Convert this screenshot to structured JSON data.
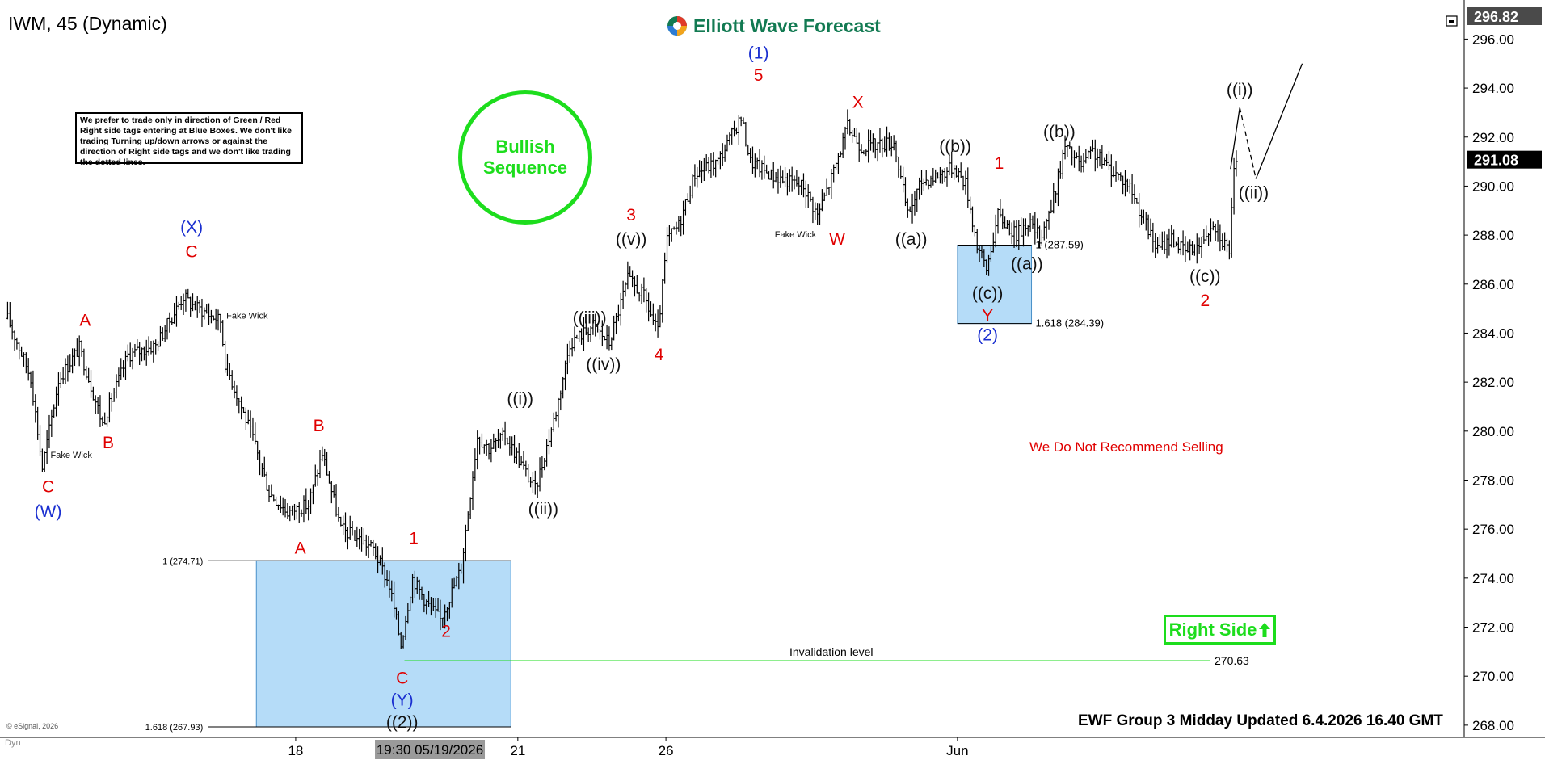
{
  "symbol_label": "IWM, 45 (Dynamic)",
  "logo_text": "Elliott Wave Forecast",
  "legend_text": "We prefer to trade only in direction of Green / Red Right side tags entering at Blue Boxes. We don't like trading Turning up/down arrows or against the direction of Right side tags and we don't like trading the dotted lines.",
  "bullish_text": "Bullish\nSequence",
  "right_side_text": "Right Side",
  "no_sell_text": "We Do Not Recommend Selling",
  "footer_text": "EWF Group 3 Midday Updated 6.4.2026 16.40 GMT",
  "copyright": "© eSignal, 2026",
  "dyn_label": "Dyn",
  "colors": {
    "green": "#1ddd1d",
    "blue_box": "#b5dcf8",
    "red": "#e00000",
    "blue_label": "#1a2fd0",
    "logo": "#127a52"
  },
  "chart_data": {
    "type": "candlestick-bars",
    "ylim": [
      267.6,
      297.2
    ],
    "y_ticks": [
      268,
      270,
      272,
      274,
      276,
      278,
      280,
      282,
      284,
      286,
      288,
      290,
      292,
      294,
      296
    ],
    "x_ticks": [
      {
        "label": "18",
        "bar": 125
      },
      {
        "label": "21",
        "bar": 221
      },
      {
        "label": "26",
        "bar": 285
      },
      {
        "label": "Jun",
        "bar": 411
      }
    ],
    "x_cursor_label": "19:30 05/19/2026",
    "x_cursor_bar": 183,
    "n_bars_span": 630,
    "price_tags": [
      {
        "text": "296.82",
        "value": 296.82,
        "style": "dark"
      },
      {
        "text": "291.08",
        "value": 291.08,
        "style": "black"
      }
    ],
    "anchors": [
      [
        0,
        284.6
      ],
      [
        10,
        282.2
      ],
      [
        15,
        278.5
      ],
      [
        22,
        282.1
      ],
      [
        31,
        283.4
      ],
      [
        41,
        280.3
      ],
      [
        52,
        283.1
      ],
      [
        64,
        283.5
      ],
      [
        76,
        285.5
      ],
      [
        79,
        285.2
      ],
      [
        92,
        284.5
      ],
      [
        94,
        282.8
      ],
      [
        106,
        279.7
      ],
      [
        113,
        277.5
      ],
      [
        121,
        276.7
      ],
      [
        130,
        277.0
      ],
      [
        136,
        279.1
      ],
      [
        144,
        276.0
      ],
      [
        152,
        275.6
      ],
      [
        158,
        275.2
      ],
      [
        165,
        273.7
      ],
      [
        170,
        271.3
      ],
      [
        175,
        274.0
      ],
      [
        181,
        273.0
      ],
      [
        187,
        272.3
      ],
      [
        196,
        274.4
      ],
      [
        203,
        279.8
      ],
      [
        208,
        279.3
      ],
      [
        215,
        279.8
      ],
      [
        220,
        279.0
      ],
      [
        228,
        277.6
      ],
      [
        237,
        280.8
      ],
      [
        243,
        283.6
      ],
      [
        253,
        284.3
      ],
      [
        260,
        283.6
      ],
      [
        268,
        286.2
      ],
      [
        275,
        285.5
      ],
      [
        281,
        284.0
      ],
      [
        285,
        287.8
      ],
      [
        290,
        288.4
      ],
      [
        297,
        290.5
      ],
      [
        307,
        291.0
      ],
      [
        317,
        292.8
      ],
      [
        321,
        291.0
      ],
      [
        331,
        290.4
      ],
      [
        344,
        290.0
      ],
      [
        350,
        288.8
      ],
      [
        357,
        290.6
      ],
      [
        363,
        292.4
      ],
      [
        369,
        291.6
      ],
      [
        383,
        291.8
      ],
      [
        389,
        288.8
      ],
      [
        395,
        290.2
      ],
      [
        401,
        290.4
      ],
      [
        409,
        290.8
      ],
      [
        414,
        290.1
      ],
      [
        419,
        287.6
      ],
      [
        423,
        286.6
      ],
      [
        428,
        288.8
      ],
      [
        436,
        288.0
      ],
      [
        441,
        288.6
      ],
      [
        446,
        287.9
      ],
      [
        451,
        289.1
      ],
      [
        457,
        291.6
      ],
      [
        464,
        290.8
      ],
      [
        469,
        291.4
      ],
      [
        473,
        291.0
      ],
      [
        478,
        290.6
      ],
      [
        485,
        290.0
      ],
      [
        491,
        288.6
      ],
      [
        497,
        287.4
      ],
      [
        503,
        287.9
      ],
      [
        509,
        287.3
      ],
      [
        515,
        287.6
      ],
      [
        521,
        288.6
      ],
      [
        525,
        287.8
      ],
      [
        528,
        287.4
      ],
      [
        530,
        290.5
      ],
      [
        532,
        291.1
      ]
    ],
    "zones": [
      {
        "from_bar": 108,
        "to_bar": 218,
        "top": 274.71,
        "bottom": 267.93,
        "upper_label": "1 (274.71)",
        "lower_label": "1.618 (267.93)"
      },
      {
        "from_bar": 411,
        "to_bar": 443,
        "top": 287.59,
        "bottom": 284.39,
        "upper_label": "1 (287.59)",
        "lower_label": "1.618 (284.39)"
      }
    ],
    "invalidation": {
      "value": 270.63,
      "label": "Invalidation level",
      "value_label": "270.63",
      "from_bar": 172,
      "to_bar": 520
    },
    "projection": {
      "solid": [
        [
          529,
          290.7
        ],
        [
          533,
          293.2
        ]
      ],
      "dashed": [
        [
          533,
          293.2
        ],
        [
          540,
          290.3
        ]
      ],
      "solid2": [
        [
          540,
          290.3
        ],
        [
          560,
          295.0
        ]
      ]
    },
    "wave_labels": [
      {
        "text": "C",
        "bar": 18,
        "price": 277.5,
        "color": "red"
      },
      {
        "text": "(W)",
        "bar": 18,
        "price": 276.5,
        "color": "blue"
      },
      {
        "text": "Fake Wick",
        "bar": 28,
        "price": 278.9,
        "color": "black",
        "size": "small"
      },
      {
        "text": "A",
        "bar": 34,
        "price": 284.3,
        "color": "red"
      },
      {
        "text": "B",
        "bar": 44,
        "price": 279.3,
        "color": "red"
      },
      {
        "text": "(X)",
        "bar": 80,
        "price": 288.1,
        "color": "blue"
      },
      {
        "text": "C",
        "bar": 80,
        "price": 287.1,
        "color": "red"
      },
      {
        "text": "Fake Wick",
        "bar": 104,
        "price": 284.6,
        "color": "black",
        "size": "small"
      },
      {
        "text": "B",
        "bar": 135,
        "price": 280.0,
        "color": "red"
      },
      {
        "text": "A",
        "bar": 127,
        "price": 275.0,
        "color": "red"
      },
      {
        "text": "1",
        "bar": 176,
        "price": 275.4,
        "color": "red"
      },
      {
        "text": "2",
        "bar": 190,
        "price": 271.6,
        "color": "red"
      },
      {
        "text": "C",
        "bar": 171,
        "price": 269.7,
        "color": "red"
      },
      {
        "text": "(Y)",
        "bar": 171,
        "price": 268.8,
        "color": "blue"
      },
      {
        "text": "((2))",
        "bar": 171,
        "price": 267.9,
        "color": "black"
      },
      {
        "text": "((i))",
        "bar": 222,
        "price": 281.1,
        "color": "black"
      },
      {
        "text": "((ii))",
        "bar": 232,
        "price": 276.6,
        "color": "black"
      },
      {
        "text": "((iii))",
        "bar": 252,
        "price": 284.4,
        "color": "black"
      },
      {
        "text": "((iv))",
        "bar": 258,
        "price": 282.5,
        "color": "black"
      },
      {
        "text": "3",
        "bar": 270,
        "price": 288.6,
        "color": "red"
      },
      {
        "text": "((v))",
        "bar": 270,
        "price": 287.6,
        "color": "black"
      },
      {
        "text": "4",
        "bar": 282,
        "price": 282.9,
        "color": "red"
      },
      {
        "text": "(1)",
        "bar": 325,
        "price": 295.2,
        "color": "blue"
      },
      {
        "text": "5",
        "bar": 325,
        "price": 294.3,
        "color": "red"
      },
      {
        "text": "Fake Wick",
        "bar": 341,
        "price": 287.9,
        "color": "black",
        "size": "small"
      },
      {
        "text": "W",
        "bar": 359,
        "price": 287.6,
        "color": "red"
      },
      {
        "text": "X",
        "bar": 368,
        "price": 293.2,
        "color": "red"
      },
      {
        "text": "((a))",
        "bar": 391,
        "price": 287.6,
        "color": "black"
      },
      {
        "text": "((b))",
        "bar": 410,
        "price": 291.4,
        "color": "black"
      },
      {
        "text": "1",
        "bar": 429,
        "price": 290.7,
        "color": "red"
      },
      {
        "text": "((a))",
        "bar": 441,
        "price": 286.6,
        "color": "black"
      },
      {
        "text": "((c))",
        "bar": 424,
        "price": 285.4,
        "color": "black"
      },
      {
        "text": "Y",
        "bar": 424,
        "price": 284.5,
        "color": "red"
      },
      {
        "text": "(2)",
        "bar": 424,
        "price": 283.7,
        "color": "blue"
      },
      {
        "text": "((b))",
        "bar": 455,
        "price": 292.0,
        "color": "black"
      },
      {
        "text": "((c))",
        "bar": 518,
        "price": 286.1,
        "color": "black"
      },
      {
        "text": "2",
        "bar": 518,
        "price": 285.1,
        "color": "red"
      },
      {
        "text": "((i))",
        "bar": 533,
        "price": 293.7,
        "color": "black"
      },
      {
        "text": "((ii))",
        "bar": 539,
        "price": 289.5,
        "color": "black"
      }
    ]
  }
}
